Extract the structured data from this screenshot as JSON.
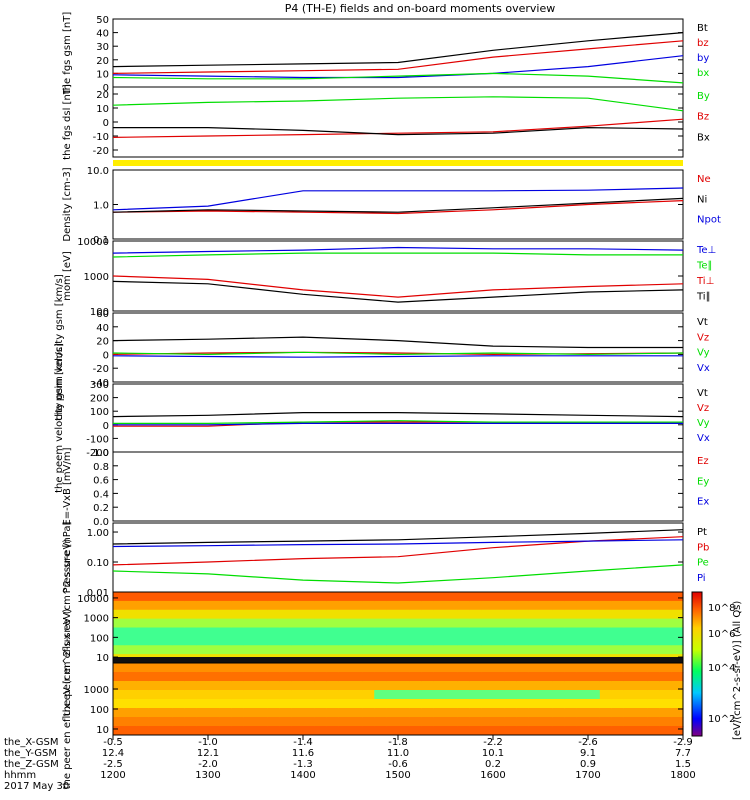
{
  "title": "P4 (TH-E) fields and on-board moments overview",
  "date_label": "2017 May 30",
  "colorbar_label": "[eV/(cm^2-s-sr-eV)] (All Qs)",
  "colorbar_ticks": [
    "10^8",
    "10^6",
    "10^4",
    "10^2"
  ],
  "bottom_axis": {
    "row_labels": [
      "the_X-GSM",
      "the_Y-GSM",
      "the_Z-GSM",
      "hhmm"
    ],
    "columns": [
      [
        "-0.5",
        "12.4",
        "-2.5",
        "1200"
      ],
      [
        "-1.0",
        "12.1",
        "-2.0",
        "1300"
      ],
      [
        "-1.4",
        "11.6",
        "-1.3",
        "1400"
      ],
      [
        "-1.8",
        "11.0",
        "-0.6",
        "1500"
      ],
      [
        "-2.2",
        "10.1",
        "0.2",
        "1600"
      ],
      [
        "-2.6",
        "9.1",
        "0.9",
        "1700"
      ],
      [
        "-2.9",
        "7.7",
        "1.5",
        "1800"
      ]
    ]
  },
  "colors": {
    "black": "#000000",
    "red": "#e00000",
    "green": "#00dd00",
    "blue": "#0000e0",
    "yellow": "#ffee00"
  },
  "chart_data": [
    {
      "type": "line",
      "ylabel": "the fgs gsm [nT]",
      "ylim": [
        0,
        50
      ],
      "yscale": "linear",
      "ticks": [
        "50",
        "40",
        "30",
        "20",
        "10",
        "0"
      ],
      "tick_values": [
        50,
        40,
        30,
        20,
        10,
        0
      ],
      "x": [
        12,
        13,
        14,
        15,
        16,
        17,
        18
      ],
      "series": [
        {
          "name": "Bt",
          "color": "black",
          "values": [
            15,
            16,
            17,
            18,
            27,
            34,
            40
          ]
        },
        {
          "name": "bz",
          "color": "red",
          "values": [
            10,
            11,
            12,
            13,
            22,
            28,
            34
          ]
        },
        {
          "name": "by",
          "color": "blue",
          "values": [
            9,
            8,
            7,
            7,
            10,
            15,
            23
          ]
        },
        {
          "name": "bx",
          "color": "green",
          "values": [
            7,
            6,
            6,
            8,
            10,
            8,
            3
          ]
        }
      ]
    },
    {
      "type": "line",
      "ylabel": "the fgs dsl [nT]",
      "ylim": [
        -25,
        25
      ],
      "yscale": "linear",
      "ticks": [
        "20",
        "10",
        "0",
        "-10",
        "-20"
      ],
      "tick_values": [
        20,
        10,
        0,
        -10,
        -20
      ],
      "x": [
        12,
        13,
        14,
        15,
        16,
        17,
        18
      ],
      "series": [
        {
          "name": "By",
          "color": "green",
          "values": [
            12,
            14,
            15,
            17,
            18,
            17,
            8
          ]
        },
        {
          "name": "Bz",
          "color": "red",
          "values": [
            -11,
            -10,
            -9,
            -8,
            -7,
            -3,
            2
          ]
        },
        {
          "name": "Bx",
          "color": "black",
          "values": [
            -4,
            -4,
            -6,
            -9,
            -8,
            -4,
            -5
          ]
        }
      ]
    },
    {
      "type": "line",
      "ylabel": "Density [cm-3]",
      "ylim": [
        0.1,
        10
      ],
      "yscale": "log",
      "ticks": [
        "10.0",
        "1.0",
        "0.1"
      ],
      "tick_values": [
        10,
        1,
        0.1
      ],
      "x": [
        12,
        13,
        14,
        15,
        16,
        17,
        18
      ],
      "series": [
        {
          "name": "Ne",
          "color": "red",
          "values": [
            0.6,
            0.65,
            0.6,
            0.55,
            0.7,
            1.0,
            1.3
          ]
        },
        {
          "name": "Ni",
          "color": "black",
          "values": [
            0.6,
            0.7,
            0.65,
            0.6,
            0.8,
            1.1,
            1.5
          ]
        },
        {
          "name": "Npot",
          "color": "blue",
          "values": [
            0.7,
            0.9,
            2.5,
            2.5,
            2.5,
            2.6,
            3.0
          ]
        }
      ]
    },
    {
      "type": "line",
      "ylabel": "mom [eV]",
      "ylim": [
        100,
        10000
      ],
      "yscale": "log",
      "ticks": [
        "10000",
        "1000",
        "100"
      ],
      "tick_values": [
        10000,
        1000,
        100
      ],
      "x": [
        12,
        13,
        14,
        15,
        16,
        17,
        18
      ],
      "series": [
        {
          "name": "Te⊥",
          "color": "blue",
          "values": [
            4500,
            5000,
            5500,
            6500,
            6000,
            6000,
            5500
          ]
        },
        {
          "name": "Te∥",
          "color": "green",
          "values": [
            3500,
            4000,
            4500,
            4500,
            4500,
            4000,
            4000
          ]
        },
        {
          "name": "Ti⊥",
          "color": "red",
          "values": [
            1000,
            800,
            400,
            250,
            400,
            500,
            600
          ]
        },
        {
          "name": "Ti∥",
          "color": "black",
          "values": [
            700,
            600,
            300,
            180,
            250,
            350,
            400
          ]
        }
      ]
    },
    {
      "type": "line",
      "ylabel": "the peim velocity gsm [km/s]",
      "ylim": [
        -40,
        60
      ],
      "yscale": "linear",
      "ticks": [
        "60",
        "40",
        "20",
        "0",
        "-20",
        "-40"
      ],
      "tick_values": [
        60,
        40,
        20,
        0,
        -20,
        -40
      ],
      "x": [
        12,
        13,
        14,
        15,
        16,
        17,
        18
      ],
      "series": [
        {
          "name": "Vt",
          "color": "black",
          "values": [
            20,
            22,
            25,
            20,
            12,
            10,
            10
          ]
        },
        {
          "name": "Vz",
          "color": "red",
          "values": [
            0,
            2,
            3,
            2,
            0,
            1,
            2
          ]
        },
        {
          "name": "Vy",
          "color": "green",
          "values": [
            2,
            0,
            3,
            0,
            2,
            0,
            2
          ]
        },
        {
          "name": "Vx",
          "color": "blue",
          "values": [
            -2,
            -3,
            -4,
            -3,
            -2,
            -2,
            -2
          ]
        }
      ]
    },
    {
      "type": "line",
      "ylabel": "the peem velocity gsm [km/s]",
      "ylim": [
        -200,
        300
      ],
      "yscale": "linear",
      "ticks": [
        "300",
        "200",
        "100",
        "0",
        "-100",
        "-200"
      ],
      "tick_values": [
        300,
        200,
        100,
        0,
        -100,
        -200
      ],
      "x": [
        12,
        13,
        14,
        15,
        16,
        17,
        18
      ],
      "series": [
        {
          "name": "Vt",
          "color": "black",
          "values": [
            60,
            70,
            90,
            90,
            80,
            70,
            60
          ]
        },
        {
          "name": "Vz",
          "color": "red",
          "values": [
            -10,
            -10,
            20,
            20,
            20,
            20,
            20
          ]
        },
        {
          "name": "Vy",
          "color": "green",
          "values": [
            10,
            10,
            20,
            30,
            20,
            20,
            20
          ]
        },
        {
          "name": "Vx",
          "color": "blue",
          "values": [
            0,
            0,
            10,
            10,
            10,
            10,
            10
          ]
        }
      ]
    },
    {
      "type": "line",
      "ylabel": "E=-VxB [mV/m]",
      "ylim": [
        0,
        1
      ],
      "yscale": "linear",
      "ticks": [
        "1.0",
        "0.8",
        "0.6",
        "0.4",
        "0.2",
        "0.0"
      ],
      "tick_values": [
        1,
        0.8,
        0.6,
        0.4,
        0.2,
        0
      ],
      "x": [],
      "series": [
        {
          "name": "Ez",
          "color": "red",
          "values": []
        },
        {
          "name": "Ey",
          "color": "green",
          "values": []
        },
        {
          "name": "Ex",
          "color": "blue",
          "values": []
        }
      ]
    },
    {
      "type": "line",
      "ylabel": "Pressure [nPa]",
      "ylim": [
        0.01,
        2
      ],
      "yscale": "log",
      "ticks": [
        "1.00",
        "0.10",
        "0.01"
      ],
      "tick_values": [
        1,
        0.1,
        0.01
      ],
      "x": [
        12,
        13,
        14,
        15,
        16,
        17,
        18
      ],
      "series": [
        {
          "name": "Pt",
          "color": "black",
          "values": [
            0.4,
            0.45,
            0.5,
            0.55,
            0.7,
            0.9,
            1.2
          ]
        },
        {
          "name": "Pb",
          "color": "red",
          "values": [
            0.08,
            0.1,
            0.13,
            0.15,
            0.3,
            0.5,
            0.7
          ]
        },
        {
          "name": "Pe",
          "color": "green",
          "values": [
            0.05,
            0.04,
            0.025,
            0.02,
            0.03,
            0.05,
            0.08
          ]
        },
        {
          "name": "Pi",
          "color": "blue",
          "values": [
            0.33,
            0.35,
            0.38,
            0.4,
            0.45,
            0.5,
            0.55
          ]
        }
      ]
    },
    {
      "type": "heatmap",
      "ylabel": "the peir en eflux eV (cm^2-s-sr-eV)",
      "ylim": [
        5,
        20000
      ],
      "yscale": "log",
      "ticks": [
        "10000",
        "1000",
        "100",
        "10"
      ],
      "tick_values": [
        10000,
        1000,
        100,
        10
      ],
      "x": [
        12,
        13,
        14,
        15,
        16,
        17,
        18
      ]
    },
    {
      "type": "heatmap",
      "ylabel": "the peer en eflux eV (cm^2-s-sr-eV)",
      "ylim": [
        5,
        20000
      ],
      "yscale": "log",
      "ticks": [
        "1000",
        "100",
        "10"
      ],
      "tick_values": [
        1000,
        100,
        10
      ],
      "x": [
        12,
        13,
        14,
        15,
        16,
        17,
        18
      ]
    }
  ]
}
